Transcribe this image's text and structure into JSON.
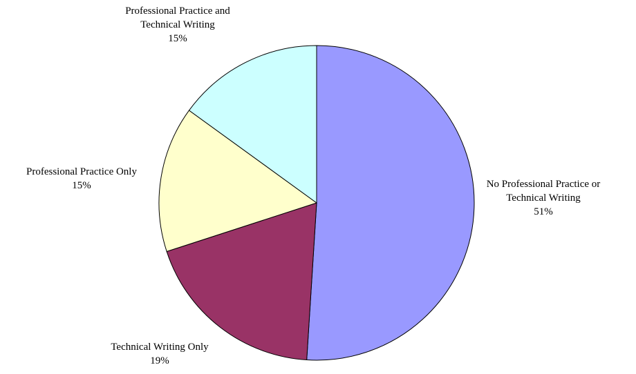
{
  "chart_data": {
    "type": "pie",
    "title": "",
    "slices": [
      {
        "label_lines": [
          "No Professional Practice or",
          "Technical Writing"
        ],
        "value": 51,
        "value_label": "51%",
        "color": "#9999ff"
      },
      {
        "label_lines": [
          "Technical Writing Only"
        ],
        "value": 19,
        "value_label": "19%",
        "color": "#993366"
      },
      {
        "label_lines": [
          "Professional Practice Only"
        ],
        "value": 15,
        "value_label": "15%",
        "color": "#ffffcc"
      },
      {
        "label_lines": [
          "Professional Practice and",
          "Technical Writing"
        ],
        "value": 15,
        "value_label": "15%",
        "color": "#ccffff"
      }
    ],
    "start": "12 o'clock",
    "direction": "clockwise",
    "legend": "none",
    "labels": "outside"
  }
}
